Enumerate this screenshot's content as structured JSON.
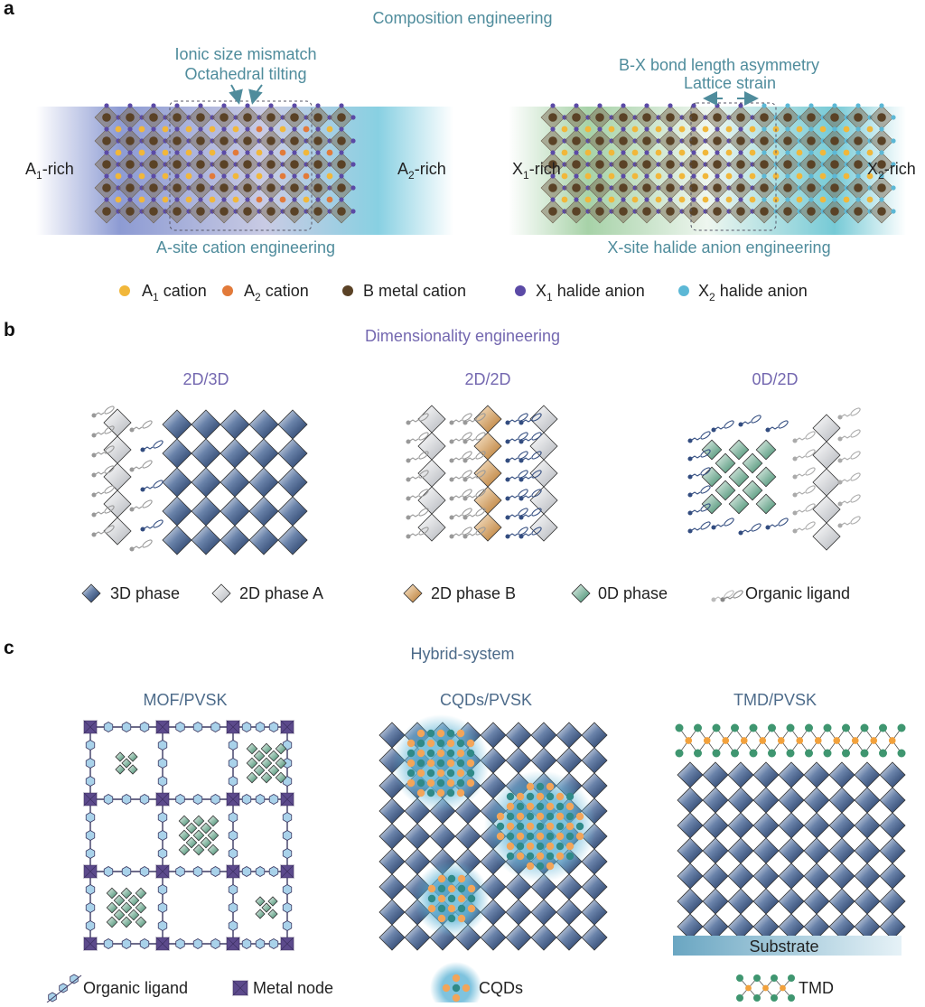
{
  "panel_a": {
    "letter": "a",
    "title": "Composition engineering",
    "a_site": {
      "annotation": [
        "Ionic size mismatch",
        "Octahedral tilting"
      ],
      "left": {
        "text": "A",
        "sub": "1",
        "after": "-rich"
      },
      "right": {
        "text": "A",
        "sub": "2",
        "after": "-rich"
      },
      "caption": "A-site cation engineering"
    },
    "x_site": {
      "annotation": [
        "B-X bond length asymmetry",
        "Lattice strain"
      ],
      "left": {
        "text": "X",
        "sub": "1",
        "after": "-rich"
      },
      "right": {
        "text": "X",
        "sub": "2",
        "after": "-rich"
      },
      "caption": "X-site halide anion engineering"
    },
    "legend": [
      {
        "text": "A",
        "sub": "1",
        "after": " cation"
      },
      {
        "text": "A",
        "sub": "2",
        "after": " cation"
      },
      {
        "text": "B metal cation"
      },
      {
        "text": "X",
        "sub": "1",
        "after": " halide anion"
      },
      {
        "text": "X",
        "sub": "2",
        "after": " halide anion"
      }
    ]
  },
  "panel_b": {
    "letter": "b",
    "title": "Dimensionality engineering",
    "schemes": [
      "2D/3D",
      "2D/2D",
      "0D/2D"
    ],
    "legend": [
      "3D phase",
      "2D phase A",
      "2D phase B",
      "0D phase",
      "Organic ligand"
    ]
  },
  "panel_c": {
    "letter": "c",
    "title": "Hybrid-system",
    "schemes": [
      "MOF/PVSK",
      "CQDs/PVSK",
      "TMD/PVSK"
    ],
    "substrate": "Substrate",
    "legend": [
      "Organic ligand",
      "Metal node",
      "CQDs",
      "TMD"
    ]
  }
}
